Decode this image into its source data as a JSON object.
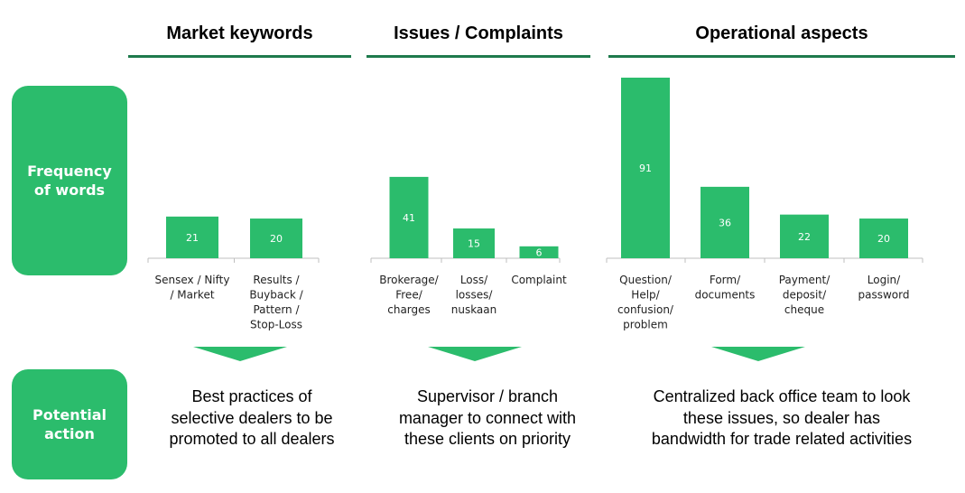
{
  "side_labels": {
    "frequency": "Frequency\nof words",
    "action": "Potential\naction"
  },
  "colors": {
    "bar": "#2bbc6c",
    "rule": "#1e7a4c",
    "axis": "#bfbfbf"
  },
  "chart_data": [
    {
      "type": "bar",
      "title": "Market keywords",
      "categories": [
        "Sensex / Nifty / Market",
        "Results / Buyback / Pattern / Stop-Loss"
      ],
      "category_lines": [
        [
          "Sensex / Nifty",
          "/ Market"
        ],
        [
          "Results /",
          "Buyback /",
          "Pattern /",
          "Stop-Loss"
        ]
      ],
      "values": [
        21,
        20
      ],
      "ylim": [
        0,
        91
      ]
    },
    {
      "type": "bar",
      "title": "Issues / Complaints",
      "categories": [
        "Brokerage/ Free/ charges",
        "Loss/ losses/ nuskaan",
        "Complaint"
      ],
      "category_lines": [
        [
          "Brokerage/",
          "Free/",
          "charges"
        ],
        [
          "Loss/",
          "losses/",
          "nuskaan"
        ],
        [
          "Complaint"
        ]
      ],
      "values": [
        41,
        15,
        6
      ],
      "ylim": [
        0,
        91
      ]
    },
    {
      "type": "bar",
      "title": "Operational aspects",
      "categories": [
        "Question/ Help/ confusion/ problem",
        "Form/ documents",
        "Payment/ deposit/ cheque",
        "Login/ password"
      ],
      "category_lines": [
        [
          "Question/",
          "Help/",
          "confusion/",
          "problem"
        ],
        [
          "Form/",
          "documents"
        ],
        [
          "Payment/",
          "deposit/",
          "cheque"
        ],
        [
          "Login/",
          "password"
        ]
      ],
      "values": [
        91,
        36,
        22,
        20
      ],
      "ylim": [
        0,
        91
      ]
    }
  ],
  "actions": [
    "Best practices of\nselective dealers to be\npromoted to all dealers",
    "Supervisor / branch\nmanager to connect with\nthese clients on priority",
    "Centralized back office team to look\nthese issues, so dealer has\nbandwidth for trade related activities"
  ]
}
